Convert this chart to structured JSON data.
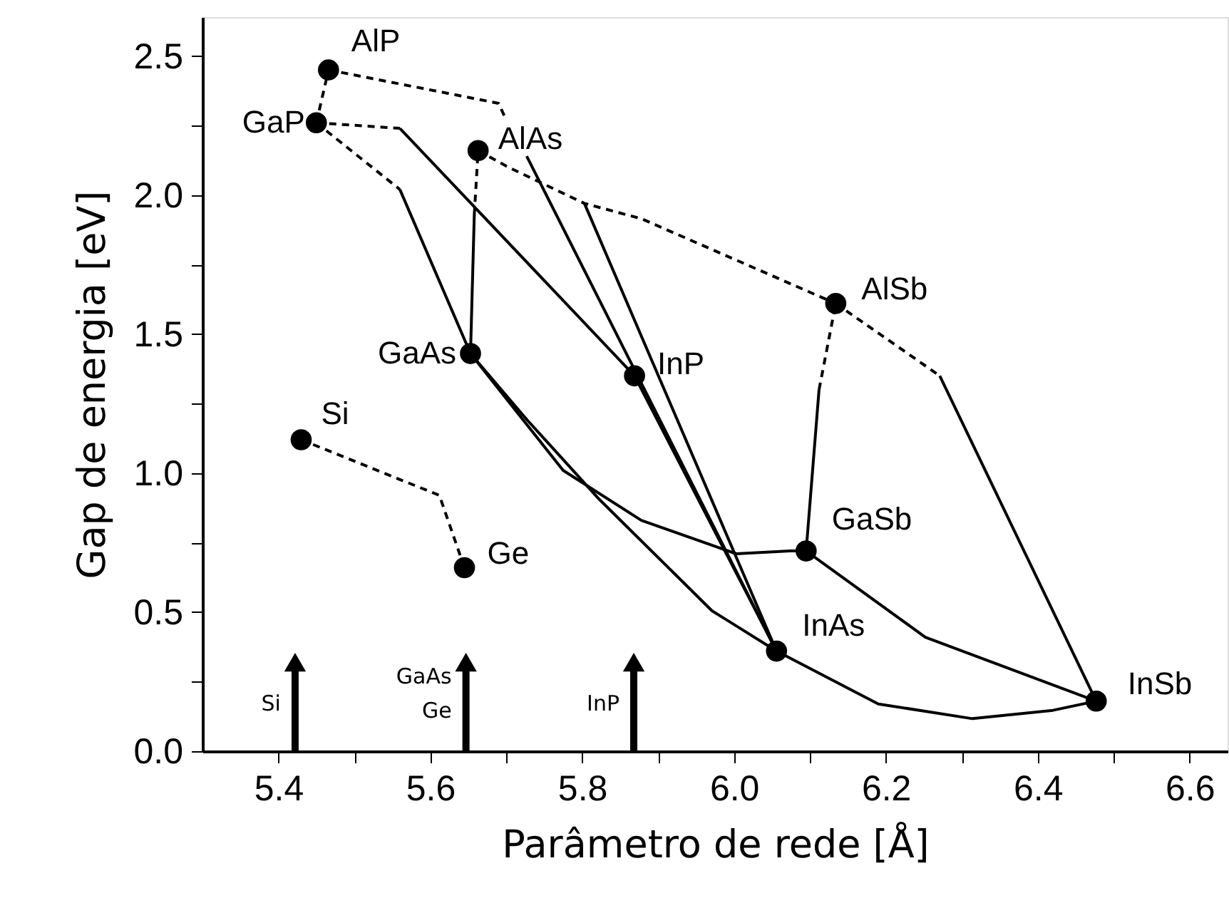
{
  "chart_data": {
    "type": "line",
    "xlabel": "Parâmetro de rede [Å]",
    "ylabel": "Gap de energia [eV]",
    "xlim": [
      5.3,
      6.65
    ],
    "ylim": [
      0,
      2.64
    ],
    "xticks": [
      {
        "value": 5.4,
        "label": "5.4"
      },
      {
        "value": 5.5,
        "label": null
      },
      {
        "value": 5.6,
        "label": "5.6"
      },
      {
        "value": 5.7,
        "label": null
      },
      {
        "value": 5.8,
        "label": "5.8"
      },
      {
        "value": 5.9,
        "label": null
      },
      {
        "value": 6.0,
        "label": "6.0"
      },
      {
        "value": 6.1,
        "label": null
      },
      {
        "value": 6.2,
        "label": "6.2"
      },
      {
        "value": 6.3,
        "label": null
      },
      {
        "value": 6.4,
        "label": "6.4"
      },
      {
        "value": 6.5,
        "label": null
      },
      {
        "value": 6.6,
        "label": "6.6"
      }
    ],
    "yticks": [
      {
        "value": 0,
        "label": "0.0"
      },
      {
        "value": 0.25,
        "label": null
      },
      {
        "value": 0.5,
        "label": "0.5"
      },
      {
        "value": 0.75,
        "label": null
      },
      {
        "value": 1.0,
        "label": "1.0"
      },
      {
        "value": 1.25,
        "label": null
      },
      {
        "value": 1.5,
        "label": "1.5"
      },
      {
        "value": 1.75,
        "label": null
      },
      {
        "value": 2.0,
        "label": "2.0"
      },
      {
        "value": 2.25,
        "label": null
      },
      {
        "value": 2.5,
        "label": "2.5"
      }
    ],
    "grid": false,
    "series": [
      {
        "line_style": "dashed",
        "color": "#000000",
        "x": [
          5.45,
          5.56
        ],
        "values": [
          2.26,
          2.24
        ]
      },
      {
        "line_style": "solid",
        "color": "#000000",
        "x": [
          5.56,
          5.869
        ],
        "values": [
          2.24,
          1.35
        ]
      },
      {
        "line_style": "dashed",
        "color": "#000000",
        "x": [
          5.45,
          5.56
        ],
        "values": [
          2.26,
          2.02
        ]
      },
      {
        "line_style": "solid",
        "color": "#000000",
        "x": [
          5.56,
          5.653
        ],
        "values": [
          2.02,
          1.43
        ]
      },
      {
        "line_style": "dashed",
        "color": "#000000",
        "x": [
          5.663,
          5.658
        ],
        "values": [
          2.16,
          1.93
        ]
      },
      {
        "line_style": "solid",
        "color": "#000000",
        "x": [
          5.658,
          5.653
        ],
        "values": [
          1.93,
          1.43
        ]
      },
      {
        "line_style": "dashed",
        "color": "#000000",
        "x": [
          5.466,
          5.69,
          5.7
        ],
        "values": [
          2.45,
          2.33,
          2.27
        ]
      },
      {
        "line_style": "solid",
        "color": "#000000",
        "x": [
          5.727,
          6.056
        ],
        "values": [
          2.14,
          0.36
        ]
      },
      {
        "line_style": "dashed",
        "color": "#000000",
        "x": [
          5.663,
          5.703,
          5.803,
          5.878,
          6.134
        ],
        "values": [
          2.16,
          2.1,
          1.97,
          1.915,
          1.61
        ]
      },
      {
        "line_style": "solid",
        "color": "#000000",
        "x": [
          5.803,
          6.056
        ],
        "values": [
          1.97,
          0.36
        ]
      },
      {
        "line_style": "dashed",
        "color": "#000000",
        "x": [
          6.134,
          6.271
        ],
        "values": [
          1.61,
          1.35
        ]
      },
      {
        "line_style": "solid",
        "color": "#000000",
        "x": [
          6.271,
          6.477
        ],
        "values": [
          1.35,
          0.18
        ]
      },
      {
        "line_style": "dashed",
        "color": "#000000",
        "x": [
          6.134,
          6.112
        ],
        "values": [
          1.61,
          1.3
        ]
      },
      {
        "line_style": "solid",
        "color": "#000000",
        "x": [
          6.112,
          6.095
        ],
        "values": [
          1.3,
          0.72
        ]
      },
      {
        "line_style": "solid",
        "color": "#000000",
        "x": [
          5.653,
          5.775,
          5.878,
          6.003,
          6.074,
          6.095
        ],
        "values": [
          1.43,
          1.01,
          0.83,
          0.71,
          0.72,
          0.72
        ]
      },
      {
        "line_style": "solid",
        "color": "#000000",
        "x": [
          5.653,
          5.728,
          5.821,
          5.971,
          6.056
        ],
        "values": [
          1.43,
          1.19,
          0.91,
          0.505,
          0.36
        ]
      },
      {
        "line_style": "solid",
        "color": "#000000",
        "x": [
          6.056,
          6.19,
          6.314,
          6.42,
          6.477
        ],
        "values": [
          0.36,
          0.17,
          0.117,
          0.147,
          0.18
        ]
      },
      {
        "line_style": "solid",
        "color": "#000000",
        "x": [
          6.095,
          6.252,
          6.477
        ],
        "values": [
          0.72,
          0.41,
          0.18
        ]
      },
      {
        "line_style": "solid",
        "color": "#000000",
        "x": [
          5.869,
          6.056
        ],
        "values": [
          1.35,
          0.36
        ]
      },
      {
        "line_style": "dashed",
        "color": "#000000",
        "x": [
          5.43,
          5.612,
          5.645
        ],
        "values": [
          1.12,
          0.92,
          0.66
        ]
      },
      {
        "line_style": "dashed",
        "color": "#000000",
        "x": [
          5.466,
          5.45
        ],
        "values": [
          2.45,
          2.26
        ]
      },
      {
        "type": "scatter",
        "marker": "circle",
        "color": "#000000",
        "x": [
          5.466,
          5.45,
          5.663,
          5.653,
          5.869,
          5.43,
          5.645,
          6.134,
          6.095,
          6.056,
          6.477
        ],
        "values": [
          2.45,
          2.26,
          2.16,
          1.43,
          1.35,
          1.12,
          0.66,
          1.61,
          0.72,
          0.36,
          0.18
        ]
      }
    ],
    "annotations": [
      {
        "text": "AlP",
        "x": 5.466,
        "y": 2.45
      },
      {
        "text": "GaP",
        "x": 5.45,
        "y": 2.26
      },
      {
        "text": "AlAs",
        "x": 5.663,
        "y": 2.16
      },
      {
        "text": "GaAs",
        "x": 5.653,
        "y": 1.43
      },
      {
        "text": "InP",
        "x": 5.869,
        "y": 1.35
      },
      {
        "text": "Si",
        "x": 5.43,
        "y": 1.12
      },
      {
        "text": "Ge",
        "x": 5.645,
        "y": 0.66
      },
      {
        "text": "AlSb",
        "x": 6.134,
        "y": 1.61
      },
      {
        "text": "GaSb",
        "x": 6.095,
        "y": 0.72
      },
      {
        "text": "InAs",
        "x": 6.056,
        "y": 0.36
      },
      {
        "text": "InSb",
        "x": 6.477,
        "y": 0.18
      },
      {
        "text": "Si",
        "x": 5.422,
        "y": 0.32
      },
      {
        "text": "GaAs\nGe",
        "x": 5.647,
        "y": 0.32
      },
      {
        "text": "InP",
        "x": 5.868,
        "y": 0.32
      }
    ]
  }
}
